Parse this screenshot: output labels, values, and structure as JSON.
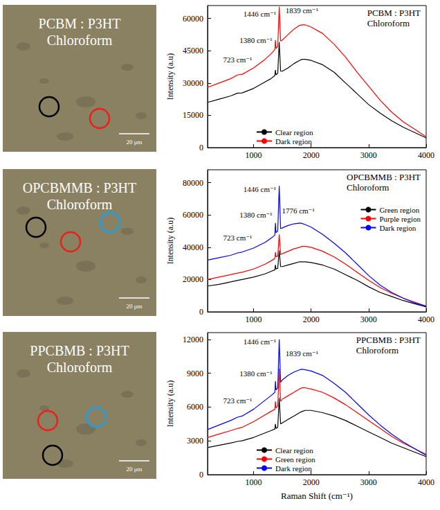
{
  "images": [
    {
      "title": "PCBM : P3HT",
      "subtitle": "Chloroform",
      "scale_bar": "20 μm",
      "circle_colors": [
        "#000000",
        "#e8221a"
      ]
    },
    {
      "title": "OPCBMMB : P3HT",
      "subtitle": "Chloroform",
      "scale_bar": "20 μm",
      "circle_colors": [
        "#000000",
        "#e8221a",
        "#1ea0e6"
      ]
    },
    {
      "title": "PPCBMB : P3HT",
      "subtitle": "Chloroform",
      "scale_bar": "20 μm",
      "circle_colors": [
        "#e8221a",
        "#1ea0e6",
        "#000000"
      ]
    }
  ],
  "chart_data": [
    {
      "type": "line",
      "title": "PCBM : P3HT",
      "subtitle": "Chloroform",
      "ylabel": "Intensity (a.u)",
      "xlim": [
        200,
        4000
      ],
      "xticks": [
        1000,
        2000,
        3000,
        4000
      ],
      "ylim": [
        0,
        66000
      ],
      "yticks": [
        0,
        15000,
        30000,
        45000,
        60000
      ],
      "grid": false,
      "legend": "lower left",
      "x": [
        200,
        400,
        600,
        723,
        800,
        1000,
        1200,
        1300,
        1370,
        1380,
        1390,
        1420,
        1446,
        1470,
        1500,
        1600,
        1700,
        1800,
        1839,
        1900,
        2000,
        2200,
        2400,
        2600,
        2800,
        3000,
        3200,
        3400,
        3600,
        3800,
        4000
      ],
      "series": [
        {
          "name": "Clear region",
          "color": "#000000",
          "values": [
            21000,
            22500,
            24000,
            25300,
            25400,
            27500,
            30500,
            32000,
            33500,
            36000,
            33800,
            34500,
            49000,
            35500,
            35500,
            37000,
            39000,
            40500,
            41000,
            41000,
            40500,
            38500,
            35000,
            30000,
            25000,
            20000,
            16000,
            12500,
            9500,
            7000,
            4500
          ]
        },
        {
          "name": "Dark region",
          "color": "#ff0000",
          "values": [
            28000,
            30000,
            32000,
            33800,
            34000,
            37000,
            41000,
            43500,
            45500,
            50000,
            46000,
            47000,
            65500,
            49500,
            50000,
            52500,
            55000,
            56800,
            57000,
            57000,
            56000,
            53000,
            48000,
            42000,
            35000,
            28500,
            22000,
            16500,
            12000,
            8500,
            5000
          ]
        }
      ],
      "annotations": [
        {
          "text": "1446 cm⁻¹",
          "x": 1446,
          "y": 62000
        },
        {
          "text": "1380 cm⁻¹",
          "x": 1380,
          "y": 50000
        },
        {
          "text": "723 cm⁻¹",
          "x": 723,
          "y": 38000
        },
        {
          "text": "1839 cm⁻¹",
          "x": 1839,
          "y": 61000
        }
      ]
    },
    {
      "type": "line",
      "title": "OPCBMMB : P3HT",
      "subtitle": "Chloroform",
      "ylabel": "Intensity (a.u)",
      "xlim": [
        200,
        4000
      ],
      "xticks": [
        1000,
        2000,
        3000,
        4000
      ],
      "ylim": [
        0,
        88000
      ],
      "yticks": [
        0,
        20000,
        40000,
        60000,
        80000
      ],
      "grid": false,
      "legend": "right",
      "x": [
        200,
        400,
        600,
        723,
        800,
        1000,
        1200,
        1300,
        1370,
        1380,
        1390,
        1420,
        1446,
        1470,
        1500,
        1600,
        1700,
        1800,
        1839,
        1900,
        2000,
        2200,
        2400,
        2600,
        2800,
        3000,
        3200,
        3400,
        3600,
        3800,
        4000
      ],
      "series": [
        {
          "name": "Green region",
          "color": "#000000",
          "values": [
            16000,
            17000,
            18500,
            19500,
            20000,
            21500,
            23500,
            25000,
            26000,
            29000,
            26500,
            27000,
            38000,
            28000,
            28000,
            29000,
            30000,
            31000,
            31000,
            31000,
            30500,
            29000,
            26500,
            23000,
            19500,
            15500,
            12000,
            9500,
            7000,
            5000,
            3000
          ]
        },
        {
          "name": "Purple region",
          "color": "#ff0000",
          "values": [
            20000,
            21500,
            23000,
            24000,
            24500,
            26500,
            29500,
            31500,
            33000,
            37000,
            34000,
            34500,
            48000,
            35500,
            36000,
            37500,
            39000,
            40000,
            40500,
            40500,
            40000,
            37500,
            34000,
            29500,
            24500,
            19500,
            15000,
            11500,
            8500,
            6000,
            3500
          ]
        },
        {
          "name": "Dark region",
          "color": "#0000ff",
          "values": [
            32000,
            33500,
            35000,
            36500,
            37000,
            39500,
            43000,
            45500,
            47500,
            55000,
            49000,
            50000,
            78000,
            51500,
            52000,
            53500,
            54500,
            55000,
            54800,
            54000,
            52500,
            48000,
            42500,
            36500,
            29500,
            22500,
            16500,
            12000,
            8500,
            5500,
            3500
          ]
        }
      ],
      "annotations": [
        {
          "text": "1446 cm⁻¹",
          "x": 1446,
          "y": 76000
        },
        {
          "text": "1380 cm⁻¹",
          "x": 1380,
          "y": 60000
        },
        {
          "text": "723 cm⁻¹",
          "x": 723,
          "y": 42000
        },
        {
          "text": "1776 cm⁻¹",
          "x": 1776,
          "y": 59000
        }
      ]
    },
    {
      "type": "line",
      "title": "PPCBMB : P3HT",
      "subtitle": "Chloroform",
      "ylabel": "Intensity (a.u)",
      "xlabel": "Raman Shift (cm⁻¹)",
      "xlim": [
        200,
        4000
      ],
      "xticks": [
        1000,
        2000,
        3000,
        4000
      ],
      "ylim": [
        0,
        12600
      ],
      "yticks": [
        0,
        3000,
        6000,
        9000,
        12000
      ],
      "grid": false,
      "legend": "lower left",
      "x": [
        200,
        400,
        600,
        723,
        800,
        1000,
        1200,
        1300,
        1370,
        1380,
        1390,
        1420,
        1446,
        1470,
        1500,
        1600,
        1700,
        1800,
        1839,
        1900,
        2000,
        2200,
        2400,
        2600,
        2800,
        3000,
        3200,
        3400,
        3600,
        3800,
        4000
      ],
      "series": [
        {
          "name": "Clear region",
          "color": "#000000",
          "values": [
            2400,
            2600,
            2800,
            2950,
            3000,
            3300,
            3700,
            3900,
            4050,
            4500,
            4100,
            4200,
            6800,
            4500,
            4600,
            4900,
            5200,
            5500,
            5600,
            5700,
            5700,
            5500,
            5200,
            4800,
            4300,
            3800,
            3300,
            2800,
            2400,
            2000,
            1600
          ]
        },
        {
          "name": "Green region",
          "color": "#ff0000",
          "values": [
            3300,
            3600,
            3900,
            4100,
            4200,
            4700,
            5300,
            5600,
            5800,
            6500,
            5900,
            6100,
            9400,
            6500,
            6700,
            7000,
            7300,
            7600,
            7700,
            7700,
            7600,
            7300,
            6800,
            6200,
            5500,
            4800,
            4100,
            3400,
            2800,
            2300,
            1800
          ]
        },
        {
          "name": "Dark region",
          "color": "#0000ff",
          "values": [
            4000,
            4400,
            4800,
            5100,
            5200,
            5800,
            6600,
            7000,
            7300,
            8300,
            7500,
            7700,
            12000,
            8200,
            8400,
            8800,
            9100,
            9300,
            9350,
            9300,
            9200,
            8800,
            8100,
            7300,
            6300,
            5300,
            4400,
            3600,
            2900,
            2300,
            1700
          ]
        }
      ],
      "annotations": [
        {
          "text": "1446 cm⁻¹",
          "x": 1446,
          "y": 11800
        },
        {
          "text": "1380 cm⁻¹",
          "x": 1380,
          "y": 9000
        },
        {
          "text": "723 cm⁻¹",
          "x": 723,
          "y": 6000
        },
        {
          "text": "1839 cm⁻¹",
          "x": 1839,
          "y": 10200
        }
      ]
    }
  ]
}
